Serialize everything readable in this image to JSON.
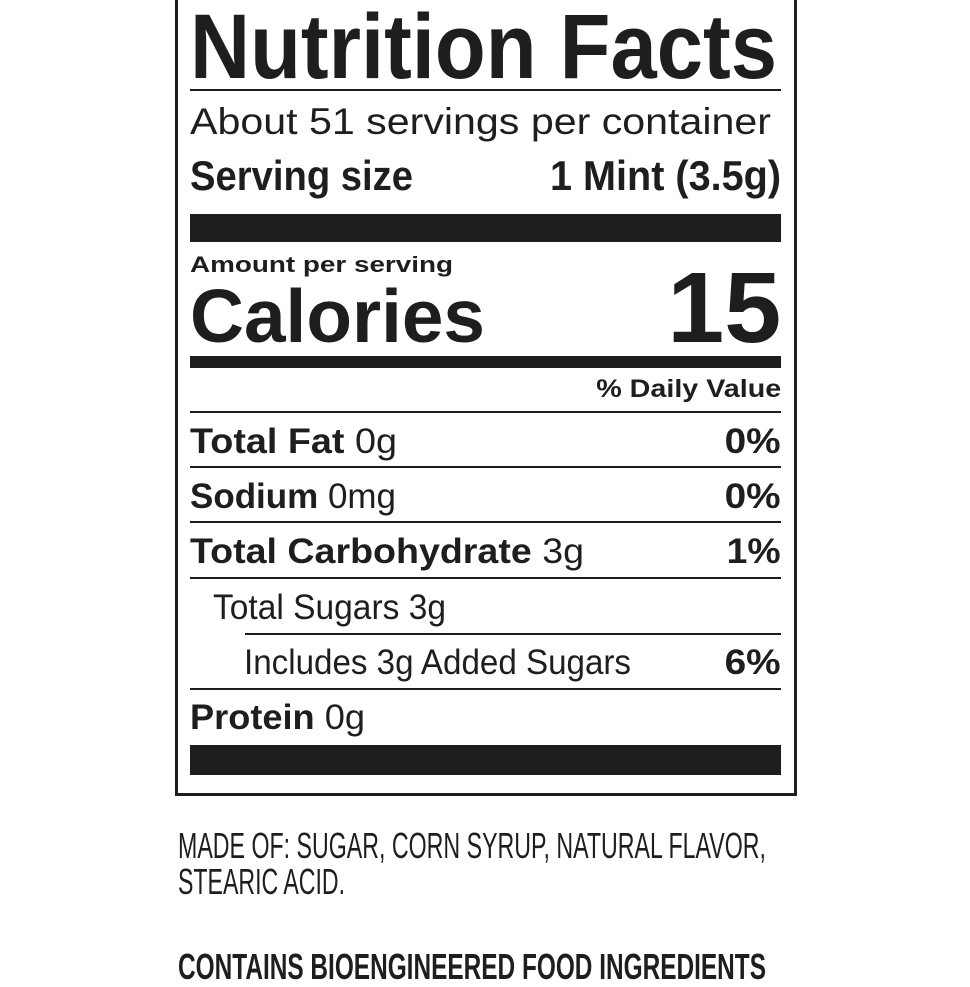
{
  "label": {
    "title": "Nutrition Facts",
    "servings_per_container": "About 51 servings per container",
    "serving_size_label": "Serving size",
    "serving_size_value": "1 Mint (3.5g)",
    "amount_per_serving": "Amount per serving",
    "calories_label": "Calories",
    "calories_value": "15",
    "daily_value_header": "% Daily Value",
    "nutrients": [
      {
        "name": "Total Fat",
        "amount": "0g",
        "dv": "0%"
      },
      {
        "name": "Sodium",
        "amount": "0mg",
        "dv": "0%"
      },
      {
        "name": "Total Carbohydrate",
        "amount": "3g",
        "dv": "1%"
      },
      {
        "name": "Total Sugars 3g",
        "amount": "",
        "dv": ""
      },
      {
        "name": "Includes 3g Added Sugars",
        "amount": "",
        "dv": "6%"
      },
      {
        "name": "Protein",
        "amount": "0g",
        "dv": ""
      }
    ]
  },
  "ingredients": {
    "line1": "MADE OF: SUGAR, CORN SYRUP, NATURAL FLAVOR,",
    "line2": "STEARIC ACID.",
    "bioengineered": "CONTAINS BIOENGINEERED FOOD INGREDIENTS"
  }
}
